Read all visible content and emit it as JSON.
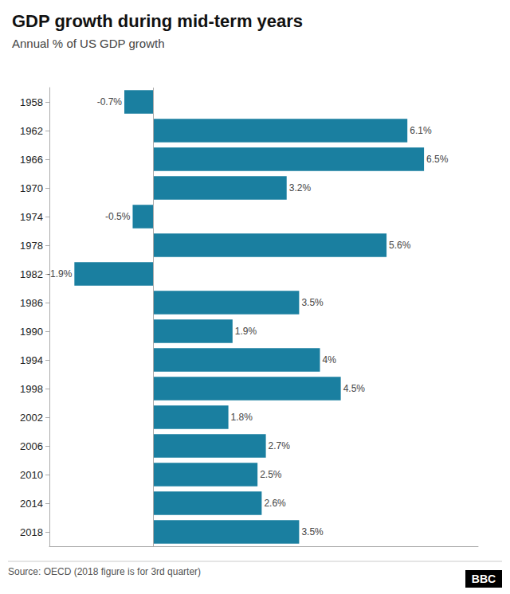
{
  "chart_data": {
    "type": "bar",
    "orientation": "horizontal",
    "title": "GDP growth during mid-term years",
    "subtitle": "Annual % of US GDP growth",
    "annotations": [
      "Source: OECD (2018 figure is for 3rd quarter)",
      "BBC"
    ],
    "categories": [
      "1958",
      "1962",
      "1966",
      "1970",
      "1974",
      "1978",
      "1982",
      "1986",
      "1990",
      "1994",
      "1998",
      "2002",
      "2006",
      "2010",
      "2014",
      "2018"
    ],
    "values": [
      -0.7,
      6.1,
      6.5,
      3.2,
      -0.5,
      5.6,
      -1.9,
      3.5,
      1.9,
      4.0,
      4.5,
      1.8,
      2.7,
      2.5,
      2.6,
      3.5
    ],
    "value_labels": [
      "-0.7%",
      "6.1%",
      "6.5%",
      "3.2%",
      "-0.5%",
      "5.6%",
      "-1.9%",
      "3.5%",
      "1.9%",
      "4%",
      "4.5%",
      "1.8%",
      "2.7%",
      "2.5%",
      "2.6%",
      "3.5%"
    ],
    "data_labels": true,
    "color": "#1a7fa0",
    "xlim": [
      -2.5,
      7.8
    ],
    "grid": false,
    "tick_labels": "y"
  }
}
